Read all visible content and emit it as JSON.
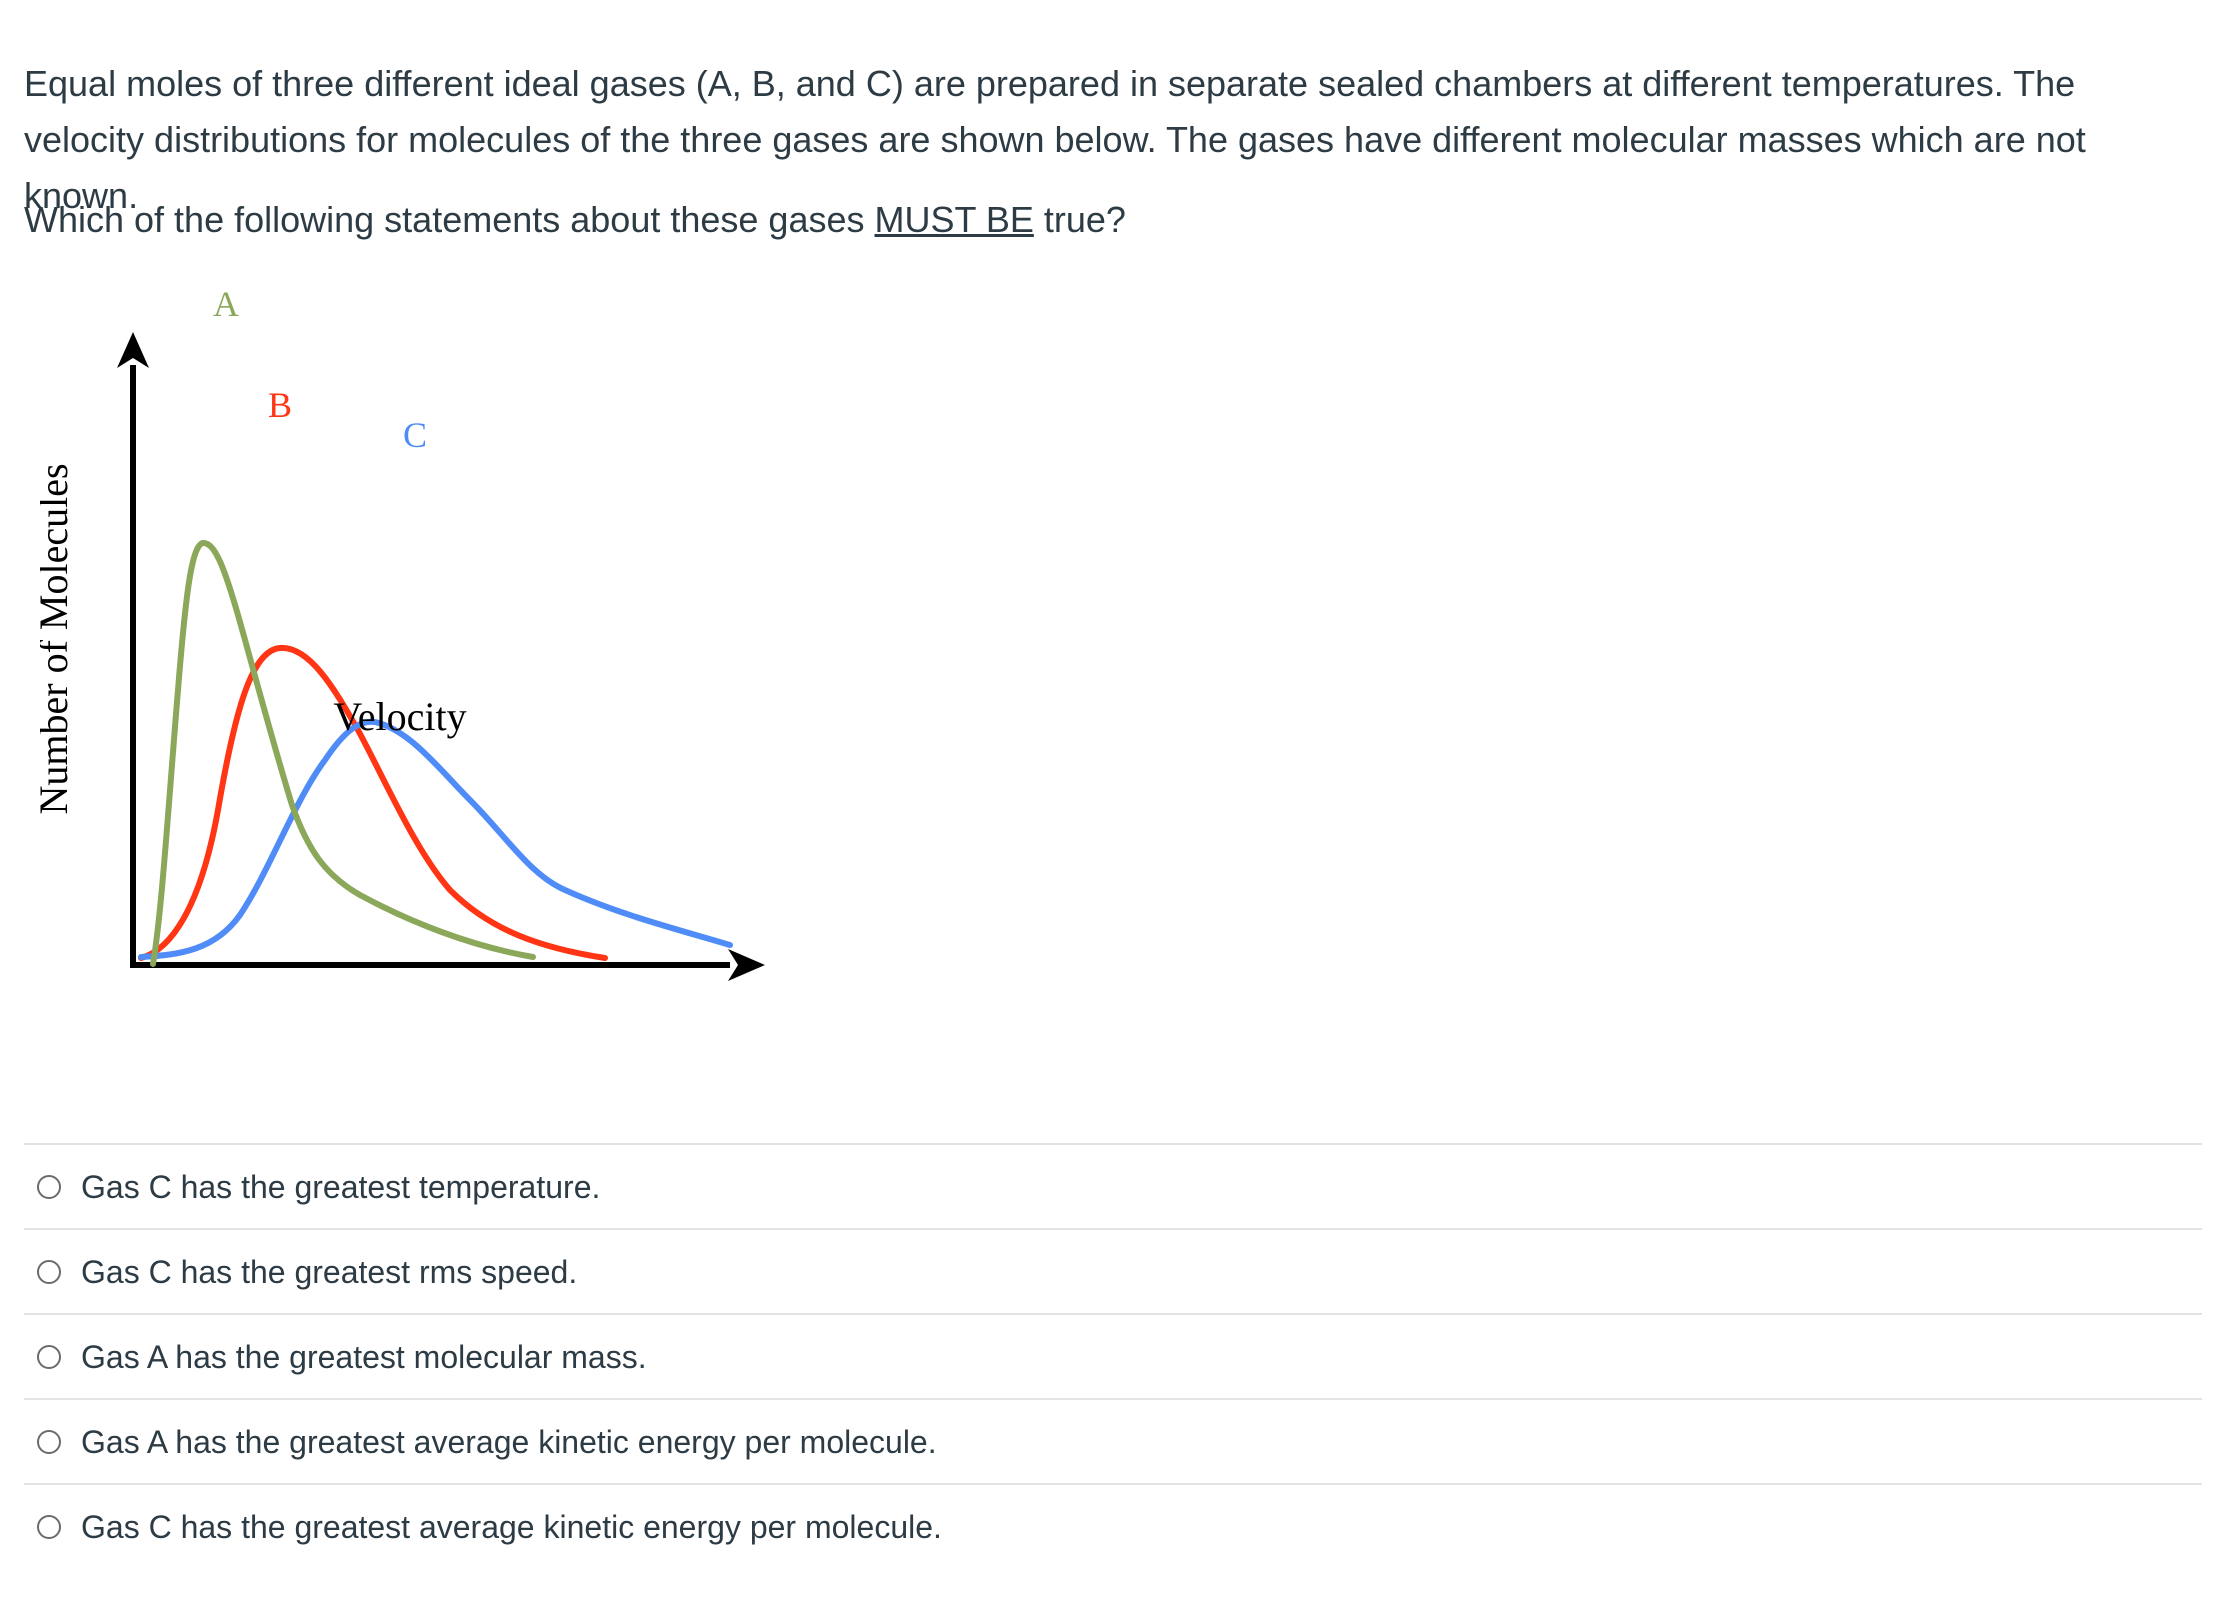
{
  "question": {
    "text": "Equal moles of three different ideal gases (A, B, and C) are prepared in separate sealed chambers at different temperatures. The velocity distributions for molecules of the three gases are shown below. The gases have different molecular masses which are not known.",
    "prompt_before": "Which of the following statements about these gases ",
    "prompt_emphasis": "MUST BE",
    "prompt_after": " true?"
  },
  "figure": {
    "ylabel": "Number of Molecules",
    "xlabel": "Velocity",
    "curve_labels": {
      "A": "A",
      "B": "B",
      "C": "C"
    },
    "colors": {
      "A": "#8aa75a",
      "B": "#ff3514",
      "C": "#4f8cf8",
      "axes": "#000000"
    }
  },
  "answers": [
    {
      "label": "Gas C has the greatest temperature."
    },
    {
      "label": "Gas C has the greatest rms speed."
    },
    {
      "label": "Gas A has the greatest molecular mass."
    },
    {
      "label": "Gas A has the greatest average kinetic energy per molecule."
    },
    {
      "label": "Gas C has the greatest average kinetic energy per molecule."
    }
  ]
}
